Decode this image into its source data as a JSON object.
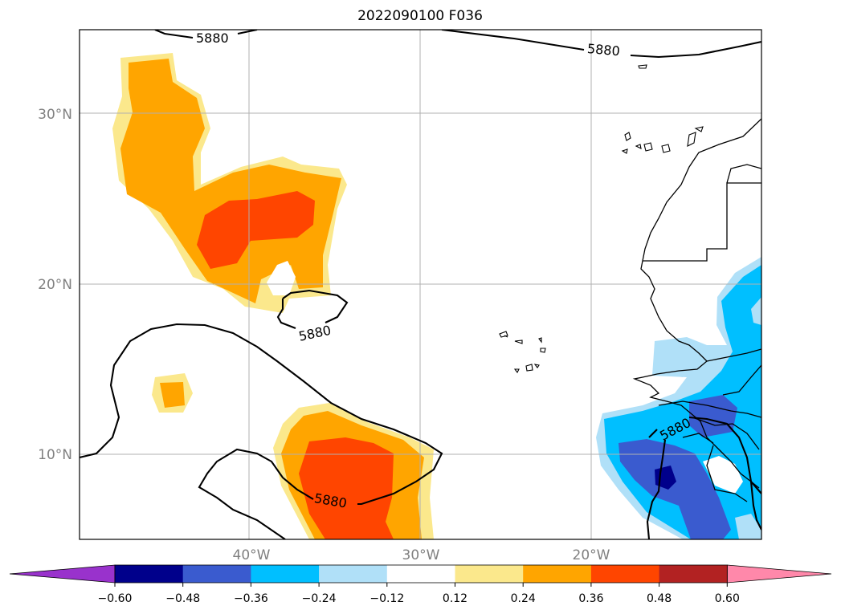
{
  "title": "2022090100 F036",
  "map": {
    "lat_ticks": [
      {
        "label": "30°N",
        "value": 30
      },
      {
        "label": "20°N",
        "value": 20
      },
      {
        "label": "10°N",
        "value": 10
      }
    ],
    "lon_ticks": [
      {
        "label": "40°W",
        "value": -40
      },
      {
        "label": "30°W",
        "value": -30
      },
      {
        "label": "20°W",
        "value": -20
      }
    ],
    "extent": {
      "lon_min": -50,
      "lon_max": -10,
      "lat_min": 5,
      "lat_max": 35
    },
    "contour_level_label": "5880",
    "grid": true,
    "contour_labels": [
      "5880",
      "5880",
      "5880",
      "5880",
      "5880"
    ]
  },
  "colorbar": {
    "levels": [
      "−0.60",
      "−0.48",
      "−0.36",
      "−0.24",
      "−0.12",
      "0.12",
      "0.24",
      "0.36",
      "0.48",
      "0.60"
    ],
    "colors": [
      "#9932cc",
      "#00008b",
      "#3a5bcf",
      "#00bfff",
      "#b0e0f8",
      "#ffffff",
      "#fbe88c",
      "#ffa500",
      "#ff4500",
      "#b22222",
      "#ff88aa"
    ],
    "extend": "both"
  }
}
